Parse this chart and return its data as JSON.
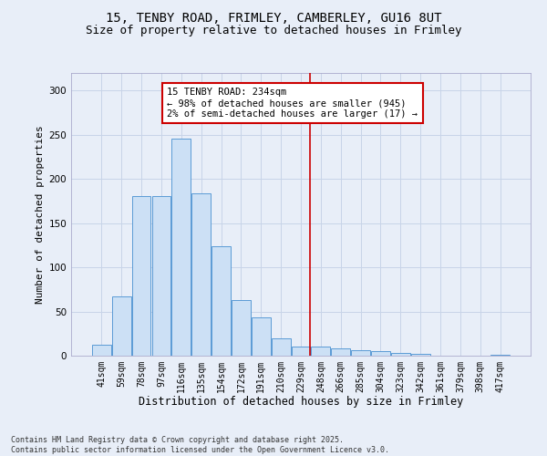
{
  "title_line1": "15, TENBY ROAD, FRIMLEY, CAMBERLEY, GU16 8UT",
  "title_line2": "Size of property relative to detached houses in Frimley",
  "xlabel": "Distribution of detached houses by size in Frimley",
  "ylabel": "Number of detached properties",
  "footer": "Contains HM Land Registry data © Crown copyright and database right 2025.\nContains public sector information licensed under the Open Government Licence v3.0.",
  "categories": [
    "41sqm",
    "59sqm",
    "78sqm",
    "97sqm",
    "116sqm",
    "135sqm",
    "154sqm",
    "172sqm",
    "191sqm",
    "210sqm",
    "229sqm",
    "248sqm",
    "266sqm",
    "285sqm",
    "304sqm",
    "323sqm",
    "342sqm",
    "361sqm",
    "379sqm",
    "398sqm",
    "417sqm"
  ],
  "values": [
    12,
    67,
    181,
    181,
    246,
    184,
    124,
    63,
    43,
    20,
    10,
    10,
    8,
    6,
    5,
    3,
    2,
    0,
    0,
    0,
    1
  ],
  "bar_color": "#cce0f5",
  "bar_edge_color": "#5b9bd5",
  "grid_color": "#c8d4e8",
  "background_color": "#e8eef8",
  "vline_color": "#cc0000",
  "annotation_box_color": "#ffffff",
  "annotation_box_edge": "#cc0000",
  "ylim": [
    0,
    320
  ],
  "yticks": [
    0,
    50,
    100,
    150,
    200,
    250,
    300
  ]
}
